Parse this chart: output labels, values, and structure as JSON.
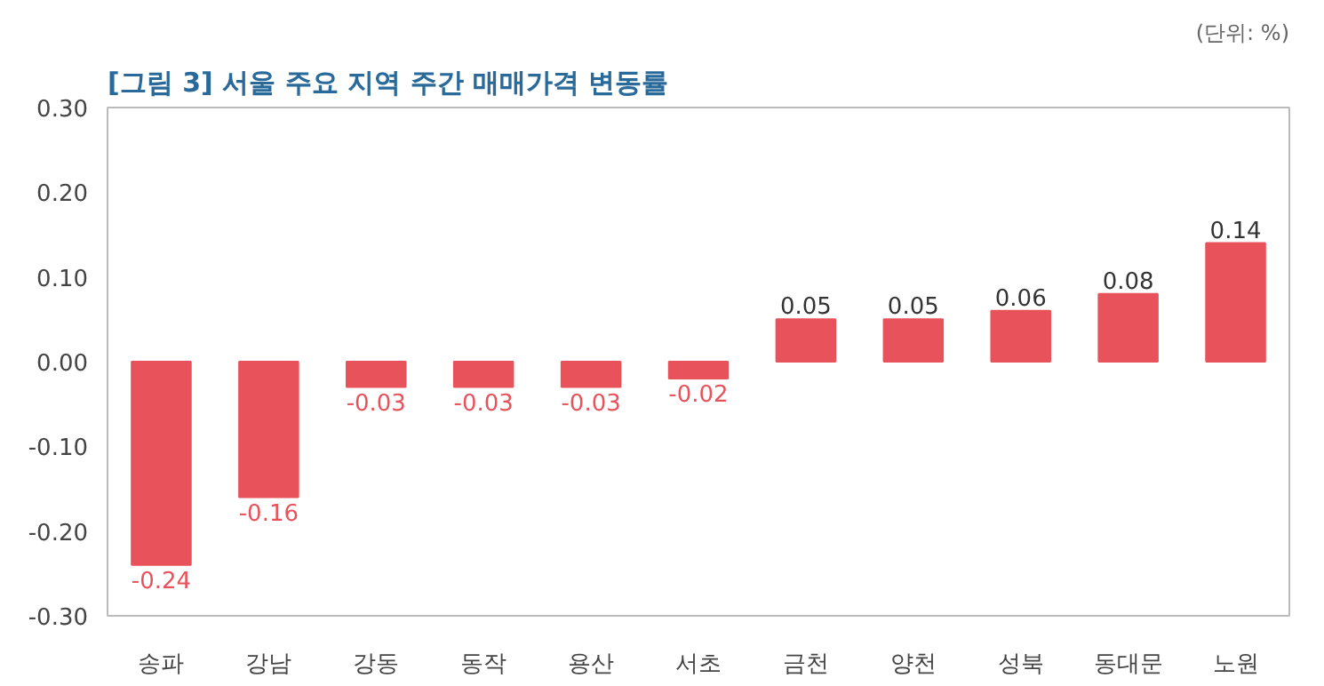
{
  "chart_data": {
    "type": "bar",
    "title": "[그림 3] 서울 주요 지역 주간 매매가격 변동률",
    "annotations": [
      "(단위: %)"
    ],
    "categories": [
      "송파",
      "강남",
      "강동",
      "동작",
      "용산",
      "서초",
      "금천",
      "양천",
      "성북",
      "동대문",
      "노원"
    ],
    "values": [
      -0.24,
      -0.16,
      -0.03,
      -0.03,
      -0.03,
      -0.02,
      0.05,
      0.05,
      0.06,
      0.08,
      0.14
    ],
    "color": "#e8525b",
    "data_labels": true,
    "ylim": [
      -0.3,
      0.3
    ],
    "yticks": [
      {
        "value": -0.3,
        "label": "-0.30"
      },
      {
        "value": -0.2,
        "label": "-0.20"
      },
      {
        "value": -0.1,
        "label": "-0.10"
      },
      {
        "value": 0,
        "label": "0.00"
      },
      {
        "value": 0.1,
        "label": "0.10"
      },
      {
        "value": 0.2,
        "label": "0.20"
      },
      {
        "value": 0.3,
        "label": "0.30"
      }
    ]
  }
}
